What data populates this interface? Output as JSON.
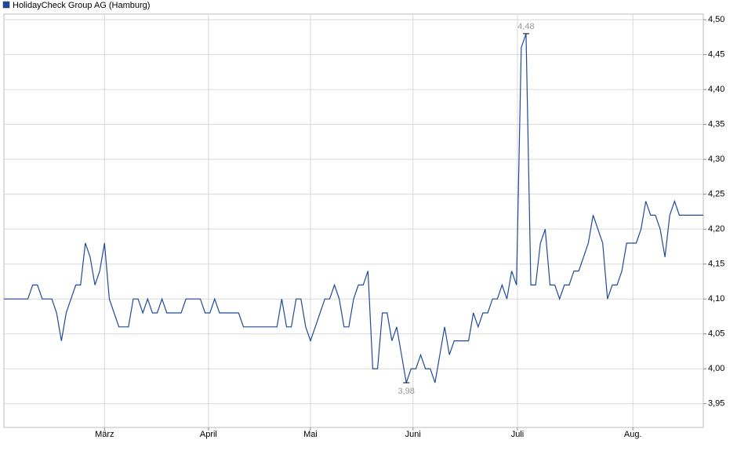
{
  "chart_data": {
    "type": "line",
    "legend": "top-left",
    "grid": true,
    "xlim": [
      0,
      146
    ],
    "xticks": [
      {
        "value": 21,
        "label": "März"
      },
      {
        "value": 42.7,
        "label": "April"
      },
      {
        "value": 64,
        "label": "Mai"
      },
      {
        "value": 85.4,
        "label": "Juni"
      },
      {
        "value": 107.2,
        "label": "Juli"
      },
      {
        "value": 131.3,
        "label": "Aug."
      }
    ],
    "ylim": [
      3.916,
      4.508
    ],
    "yticks": [
      {
        "value": 3.95,
        "label": "3,95"
      },
      {
        "value": 4.0,
        "label": "4,00"
      },
      {
        "value": 4.05,
        "label": "4,05"
      },
      {
        "value": 4.1,
        "label": "4,10"
      },
      {
        "value": 4.15,
        "label": "4,15"
      },
      {
        "value": 4.2,
        "label": "4,20"
      },
      {
        "value": 4.25,
        "label": "4,25"
      },
      {
        "value": 4.3,
        "label": "4,30"
      },
      {
        "value": 4.35,
        "label": "4,35"
      },
      {
        "value": 4.4,
        "label": "4,40"
      },
      {
        "value": 4.45,
        "label": "4,45"
      },
      {
        "value": 4.5,
        "label": "4,50"
      }
    ],
    "max_label": {
      "value": 4.48,
      "label": "4,48"
    },
    "min_label": {
      "value": 3.98,
      "label": "3,98"
    },
    "series": [
      {
        "name": "HolidayCheck Group AG (Hamburg)",
        "color": "#1e4a9a",
        "values": [
          4.1,
          4.1,
          4.1,
          4.1,
          4.1,
          4.1,
          4.12,
          4.12,
          4.1,
          4.1,
          4.1,
          4.08,
          4.04,
          4.08,
          4.1,
          4.12,
          4.12,
          4.18,
          4.16,
          4.12,
          4.14,
          4.18,
          4.1,
          4.08,
          4.06,
          4.06,
          4.06,
          4.1,
          4.1,
          4.08,
          4.1,
          4.08,
          4.08,
          4.1,
          4.08,
          4.08,
          4.08,
          4.08,
          4.1,
          4.1,
          4.1,
          4.1,
          4.08,
          4.08,
          4.1,
          4.08,
          4.08,
          4.08,
          4.08,
          4.08,
          4.06,
          4.06,
          4.06,
          4.06,
          4.06,
          4.06,
          4.06,
          4.06,
          4.1,
          4.06,
          4.06,
          4.1,
          4.1,
          4.06,
          4.04,
          4.06,
          4.08,
          4.1,
          4.1,
          4.12,
          4.1,
          4.06,
          4.06,
          4.1,
          4.12,
          4.12,
          4.14,
          4.0,
          4.0,
          4.08,
          4.08,
          4.04,
          4.06,
          4.02,
          3.98,
          4.0,
          4.0,
          4.02,
          4.0,
          4.0,
          3.98,
          4.02,
          4.06,
          4.02,
          4.04,
          4.04,
          4.04,
          4.04,
          4.08,
          4.06,
          4.08,
          4.08,
          4.1,
          4.1,
          4.12,
          4.1,
          4.14,
          4.12,
          4.46,
          4.48,
          4.12,
          4.12,
          4.18,
          4.2,
          4.12,
          4.12,
          4.1,
          4.12,
          4.12,
          4.14,
          4.14,
          4.16,
          4.18,
          4.22,
          4.2,
          4.18,
          4.1,
          4.12,
          4.12,
          4.14,
          4.18,
          4.18,
          4.18,
          4.2,
          4.24,
          4.22,
          4.22,
          4.2,
          4.16,
          4.22,
          4.24,
          4.22,
          4.22,
          4.22,
          4.22,
          4.22,
          4.22
        ]
      }
    ]
  }
}
